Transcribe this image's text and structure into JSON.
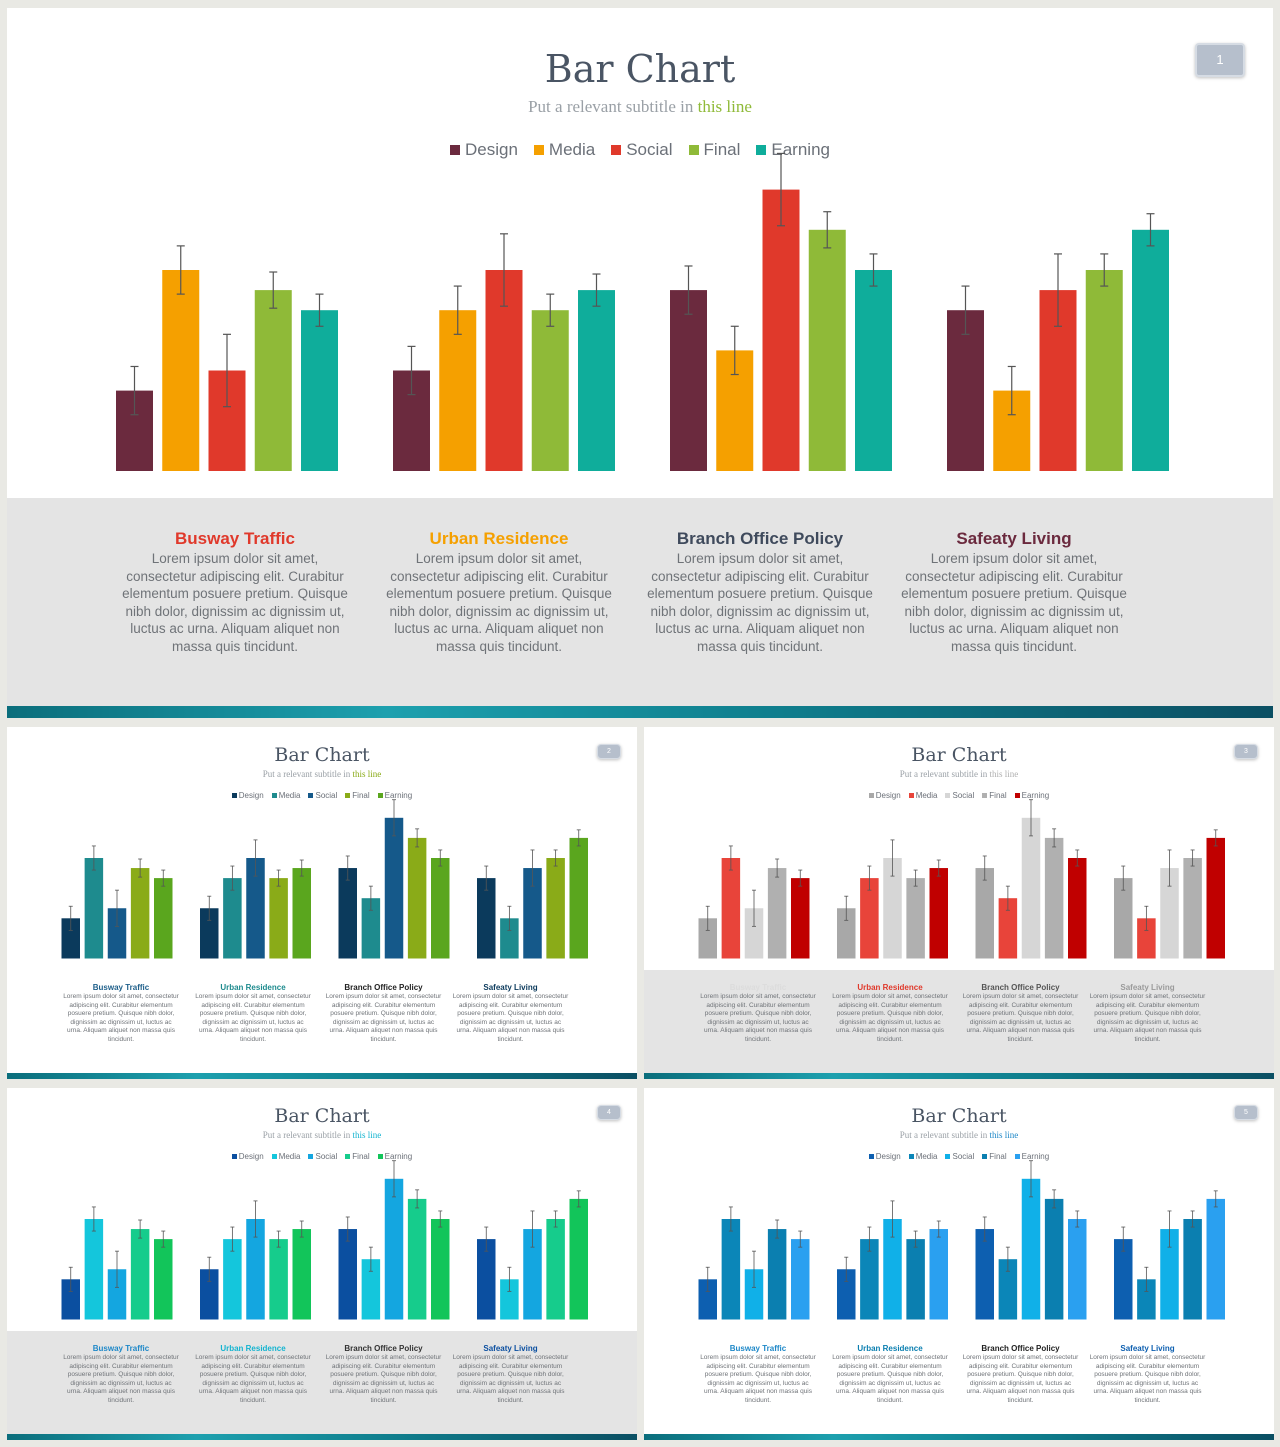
{
  "chart_data": [
    {
      "type": "bar",
      "title": "Bar Chart",
      "subtitle": {
        "text": "Put a relevant subtitle in ",
        "highlight": "this line"
      },
      "slide_number": "1",
      "legend_position": "top-center",
      "categories": [
        "Busway Traffic",
        "Urban Residence",
        "Branch Office Policy",
        "Safeaty Living"
      ],
      "series": [
        {
          "name": "Design",
          "values": [
            20,
            25,
            45,
            40
          ],
          "errors": [
            6,
            6,
            6,
            6
          ]
        },
        {
          "name": "Media",
          "values": [
            50,
            40,
            30,
            20
          ],
          "errors": [
            6,
            6,
            6,
            6
          ]
        },
        {
          "name": "Social",
          "values": [
            25,
            50,
            70,
            45
          ],
          "errors": [
            9,
            9,
            9,
            9
          ]
        },
        {
          "name": "Final",
          "values": [
            45,
            40,
            60,
            50
          ],
          "errors": [
            4.5,
            4,
            4.5,
            4
          ]
        },
        {
          "name": "Earning",
          "values": [
            40,
            45,
            50,
            60
          ],
          "errors": [
            4,
            4,
            4,
            4
          ]
        }
      ],
      "ylim": [
        0,
        80
      ],
      "grid": false,
      "colors": [
        "#6b2a3e",
        "#f5a000",
        "#e0392b",
        "#8fba38",
        "#0fad9b"
      ],
      "descriptions": [
        {
          "heading": "Busway Traffic",
          "color": "#e0392b",
          "body": "Lorem ipsum dolor sit amet, consectetur adipiscing elit. Curabitur elementum posuere pretium. Quisque nibh dolor, dignissim ac dignissim ut, luctus ac urna. Aliquam aliquet non massa quis tincidunt."
        },
        {
          "heading": "Urban Residence",
          "color": "#f5a000",
          "body": "Lorem ipsum dolor sit amet, consectetur adipiscing elit. Curabitur elementum posuere pretium. Quisque nibh dolor, dignissim ac dignissim ut, luctus ac urna. Aliquam aliquet non massa quis tincidunt."
        },
        {
          "heading": "Branch Office Policy",
          "color": "#3f4a5c",
          "body": "Lorem ipsum dolor sit amet, consectetur adipiscing elit. Curabitur elementum posuere pretium. Quisque nibh dolor, dignissim ac dignissim ut, luctus ac urna. Aliquam aliquet non massa quis tincidunt."
        },
        {
          "heading": "Safeaty Living",
          "color": "#6b2a3e",
          "body": "Lorem ipsum dolor sit amet, consectetur adipiscing elit. Curabitur elementum posuere pretium. Quisque nibh dolor, dignissim ac dignissim ut, luctus ac urna. Aliquam aliquet non massa quis tincidunt."
        }
      ]
    },
    {
      "type": "bar",
      "title": "Bar Chart",
      "subtitle": {
        "text": "Put a relevant subtitle in ",
        "highlight": "this line"
      },
      "slide_number": "2",
      "legend_position": "top-center",
      "categories": [
        "Busway Traffic",
        "Urban Residence",
        "Branch Office Policy",
        "Safeaty Living"
      ],
      "series": [
        {
          "name": "Design",
          "values": [
            20,
            25,
            45,
            40
          ],
          "errors": [
            6,
            6,
            6,
            6
          ]
        },
        {
          "name": "Media",
          "values": [
            50,
            40,
            30,
            20
          ],
          "errors": [
            6,
            6,
            6,
            6
          ]
        },
        {
          "name": "Social",
          "values": [
            25,
            50,
            70,
            45
          ],
          "errors": [
            9,
            9,
            9,
            9
          ]
        },
        {
          "name": "Final",
          "values": [
            45,
            40,
            60,
            50
          ],
          "errors": [
            4.5,
            4,
            4.5,
            4
          ]
        },
        {
          "name": "Earning",
          "values": [
            40,
            45,
            50,
            60
          ],
          "errors": [
            4,
            4,
            4,
            4
          ]
        }
      ],
      "ylim": [
        0,
        80
      ],
      "grid": false,
      "colors": [
        "#0b3a5c",
        "#1e8b8e",
        "#15598a",
        "#8aab18",
        "#5aa61e"
      ],
      "descriptions": [
        {
          "heading": "Busway Traffic",
          "color": "#1e5f8a",
          "body": "Lorem ipsum dolor sit amet, consectetur adipiscing elit. Curabitur elementum posuere pretium. Quisque nibh dolor, dignissim ac dignissim ut, luctus ac urna. Aliquam aliquet non massa quis tincidunt."
        },
        {
          "heading": "Urban Residence",
          "color": "#1e8b8e",
          "body": "Lorem ipsum dolor sit amet, consectetur adipiscing elit. Curabitur elementum posuere pretium. Quisque nibh dolor, dignissim ac dignissim ut, luctus ac urna. Aliquam aliquet non massa quis tincidunt."
        },
        {
          "heading": "Branch Office Policy",
          "color": "#222222",
          "body": "Lorem ipsum dolor sit amet, consectetur adipiscing elit. Curabitur elementum posuere pretium. Quisque nibh dolor, dignissim ac dignissim ut, luctus ac urna. Aliquam aliquet non massa quis tincidunt."
        },
        {
          "heading": "Safeaty Living",
          "color": "#0b3a5c",
          "body": "Lorem ipsum dolor sit amet, consectetur adipiscing elit. Curabitur elementum posuere pretium. Quisque nibh dolor, dignissim ac dignissim ut, luctus ac urna. Aliquam aliquet non massa quis tincidunt."
        }
      ]
    },
    {
      "type": "bar",
      "title": "Bar Chart",
      "subtitle": {
        "text": "Put a relevant subtitle in ",
        "highlight": "this line"
      },
      "slide_number": "3",
      "legend_position": "top-center",
      "categories": [
        "Busway Traffic",
        "Urban Residence",
        "Branch Office Policy",
        "Safeaty Living"
      ],
      "series": [
        {
          "name": "Design",
          "values": [
            20,
            25,
            45,
            40
          ],
          "errors": [
            6,
            6,
            6,
            6
          ]
        },
        {
          "name": "Media",
          "values": [
            50,
            40,
            30,
            20
          ],
          "errors": [
            6,
            6,
            6,
            6
          ]
        },
        {
          "name": "Social",
          "values": [
            25,
            50,
            70,
            45
          ],
          "errors": [
            9,
            9,
            9,
            9
          ]
        },
        {
          "name": "Final",
          "values": [
            45,
            40,
            60,
            50
          ],
          "errors": [
            4.5,
            4,
            4.5,
            4
          ]
        },
        {
          "name": "Earning",
          "values": [
            40,
            45,
            50,
            60
          ],
          "errors": [
            4,
            4,
            4,
            4
          ]
        }
      ],
      "ylim": [
        0,
        80
      ],
      "grid": false,
      "colors": [
        "#a8a8a8",
        "#e8443a",
        "#d6d6d6",
        "#b0b0b0",
        "#c00000"
      ],
      "descriptions": [
        {
          "heading": "Busway Traffic",
          "color": "#dcdcdc",
          "body": "Lorem ipsum dolor sit amet, consectetur adipiscing elit. Curabitur elementum posuere pretium. Quisque nibh dolor, dignissim ac dignissim ut, luctus ac urna. Aliquam aliquet non massa quis tincidunt."
        },
        {
          "heading": "Urban Residence",
          "color": "#e0392b",
          "body": "Lorem ipsum dolor sit amet, consectetur adipiscing elit. Curabitur elementum posuere pretium. Quisque nibh dolor, dignissim ac dignissim ut, luctus ac urna. Aliquam aliquet non massa quis tincidunt."
        },
        {
          "heading": "Branch Office Policy",
          "color": "#555555",
          "body": "Lorem ipsum dolor sit amet, consectetur adipiscing elit. Curabitur elementum posuere pretium. Quisque nibh dolor, dignissim ac dignissim ut, luctus ac urna. Aliquam aliquet non massa quis tincidunt."
        },
        {
          "heading": "Safeaty Living",
          "color": "#9a9a9a",
          "body": "Lorem ipsum dolor sit amet, consectetur adipiscing elit. Curabitur elementum posuere pretium. Quisque nibh dolor, dignissim ac dignissim ut, luctus ac urna. Aliquam aliquet non massa quis tincidunt."
        }
      ]
    },
    {
      "type": "bar",
      "title": "Bar Chart",
      "subtitle": {
        "text": "Put a relevant subtitle in ",
        "highlight": "this line"
      },
      "slide_number": "4",
      "legend_position": "top-center",
      "categories": [
        "Busway Traffic",
        "Urban Residence",
        "Branch Office Policy",
        "Safeaty Living"
      ],
      "series": [
        {
          "name": "Design",
          "values": [
            20,
            25,
            45,
            40
          ],
          "errors": [
            6,
            6,
            6,
            6
          ]
        },
        {
          "name": "Media",
          "values": [
            50,
            40,
            30,
            20
          ],
          "errors": [
            6,
            6,
            6,
            6
          ]
        },
        {
          "name": "Social",
          "values": [
            25,
            50,
            70,
            45
          ],
          "errors": [
            9,
            9,
            9,
            9
          ]
        },
        {
          "name": "Final",
          "values": [
            45,
            40,
            60,
            50
          ],
          "errors": [
            4.5,
            4,
            4.5,
            4
          ]
        },
        {
          "name": "Earning",
          "values": [
            40,
            45,
            50,
            60
          ],
          "errors": [
            4,
            4,
            4,
            4
          ]
        }
      ],
      "ylim": [
        0,
        80
      ],
      "grid": false,
      "colors": [
        "#0b4fa0",
        "#14c6dc",
        "#14a6e0",
        "#16cc8c",
        "#12c55a"
      ],
      "descriptions": [
        {
          "heading": "Busway Traffic",
          "color": "#1e88c8",
          "body": "Lorem ipsum dolor sit amet, consectetur adipiscing elit. Curabitur elementum posuere pretium. Quisque nibh dolor, dignissim ac dignissim ut, luctus ac urna. Aliquam aliquet non massa quis tincidunt."
        },
        {
          "heading": "Urban Residence",
          "color": "#14b4d0",
          "body": "Lorem ipsum dolor sit amet, consectetur adipiscing elit. Curabitur elementum posuere pretium. Quisque nibh dolor, dignissim ac dignissim ut, luctus ac urna. Aliquam aliquet non massa quis tincidunt."
        },
        {
          "heading": "Branch Office Policy",
          "color": "#333333",
          "body": "Lorem ipsum dolor sit amet, consectetur adipiscing elit. Curabitur elementum posuere pretium. Quisque nibh dolor, dignissim ac dignissim ut, luctus ac urna. Aliquam aliquet non massa quis tincidunt."
        },
        {
          "heading": "Safeaty Living",
          "color": "#0b4fa0",
          "body": "Lorem ipsum dolor sit amet, consectetur adipiscing elit. Curabitur elementum posuere pretium. Quisque nibh dolor, dignissim ac dignissim ut, luctus ac urna. Aliquam aliquet non massa quis tincidunt."
        }
      ]
    },
    {
      "type": "bar",
      "title": "Bar Chart",
      "subtitle": {
        "text": "Put a relevant subtitle in ",
        "highlight": "this line"
      },
      "slide_number": "5",
      "legend_position": "top-center",
      "categories": [
        "Busway Traffic",
        "Urban Residence",
        "Branch Office Policy",
        "Safeaty Living"
      ],
      "series": [
        {
          "name": "Design",
          "values": [
            20,
            25,
            45,
            40
          ],
          "errors": [
            6,
            6,
            6,
            6
          ]
        },
        {
          "name": "Media",
          "values": [
            50,
            40,
            30,
            20
          ],
          "errors": [
            6,
            6,
            6,
            6
          ]
        },
        {
          "name": "Social",
          "values": [
            25,
            50,
            70,
            45
          ],
          "errors": [
            9,
            9,
            9,
            9
          ]
        },
        {
          "name": "Final",
          "values": [
            45,
            40,
            60,
            50
          ],
          "errors": [
            4.5,
            4,
            4.5,
            4
          ]
        },
        {
          "name": "Earning",
          "values": [
            40,
            45,
            50,
            60
          ],
          "errors": [
            4,
            4,
            4,
            4
          ]
        }
      ],
      "ylim": [
        0,
        80
      ],
      "grid": false,
      "colors": [
        "#0d5fb0",
        "#0b86b8",
        "#10b0e8",
        "#0b7fb0",
        "#2aa0f0"
      ],
      "descriptions": [
        {
          "heading": "Busway Traffic",
          "color": "#1e88c8",
          "body": "Lorem ipsum dolor sit amet, consectetur adipiscing elit. Curabitur elementum posuere pretium. Quisque nibh dolor, dignissim ac dignissim ut, luctus ac urna. Aliquam aliquet non massa quis tincidunt."
        },
        {
          "heading": "Urban Residence",
          "color": "#0b7fb0",
          "body": "Lorem ipsum dolor sit amet, consectetur adipiscing elit. Curabitur elementum posuere pretium. Quisque nibh dolor, dignissim ac dignissim ut, luctus ac urna. Aliquam aliquet non massa quis tincidunt."
        },
        {
          "heading": "Branch Office Policy",
          "color": "#222222",
          "body": "Lorem ipsum dolor sit amet, consectetur adipiscing elit. Curabitur elementum posuere pretium. Quisque nibh dolor, dignissim ac dignissim ut, luctus ac urna. Aliquam aliquet non massa quis tincidunt."
        },
        {
          "heading": "Safeaty Living",
          "color": "#0d5fb0",
          "body": "Lorem ipsum dolor sit amet, consectetur adipiscing elit. Curabitur elementum posuere pretium. Quisque nibh dolor, dignissim ac dignissim ut, luctus ac urna. Aliquam aliquet non massa quis tincidunt."
        }
      ]
    }
  ]
}
